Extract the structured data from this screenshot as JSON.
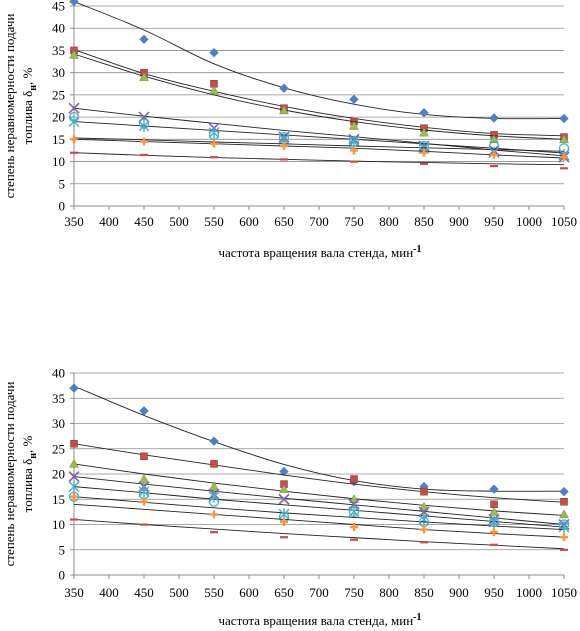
{
  "chart_data": [
    {
      "type": "scatter",
      "xlabel": "частота вращения вала стенда, мин",
      "xlabel_sup": "-1",
      "ylabel_line1": "степень неравномерности подачи",
      "ylabel_line2": "топлива δ",
      "ylabel_sub": "н",
      "ylabel_unit": ", %",
      "x": [
        350,
        450,
        550,
        650,
        750,
        850,
        950,
        1050
      ],
      "xlim": [
        350,
        1050
      ],
      "ylim": [
        0,
        45
      ],
      "yticks": [
        0,
        5,
        10,
        15,
        20,
        25,
        30,
        35,
        40,
        45
      ],
      "grid": true,
      "series": [
        {
          "marker": "diamond",
          "color": "#4F81BD",
          "values": [
            46,
            37.5,
            34.5,
            26.5,
            24,
            21,
            19.8,
            19.7
          ],
          "trend": [
            46,
            39.6,
            32,
            26.6,
            22.9,
            20.6,
            19.7,
            19.7
          ]
        },
        {
          "marker": "square",
          "color": "#C0504D",
          "values": [
            35,
            30,
            27.5,
            22,
            19,
            17.5,
            16,
            15.5
          ],
          "trend": [
            35.2,
            29.8,
            25.8,
            22.4,
            19.7,
            17.7,
            16.3,
            15.8
          ]
        },
        {
          "marker": "triangle",
          "color": "#9BBB59",
          "values": [
            34,
            29,
            26,
            21.5,
            18,
            16.5,
            15,
            15
          ],
          "trend": [
            34.2,
            29.2,
            25,
            21.6,
            19,
            17.1,
            15.8,
            15
          ]
        },
        {
          "marker": "xcross",
          "color": "#8064A2",
          "values": [
            22,
            20,
            17.5,
            15.5,
            15,
            13.5,
            12.5,
            11
          ],
          "trend": [
            22,
            20.2,
            18.6,
            17,
            15.6,
            14.1,
            12.6,
            11.3
          ]
        },
        {
          "marker": "star",
          "color": "#4BACC6",
          "values": [
            19,
            18,
            16.5,
            15,
            14.5,
            13,
            12,
            11.5
          ],
          "trend": [
            19,
            18,
            17,
            16,
            15,
            14,
            13,
            11.9
          ]
        },
        {
          "marker": "circle",
          "color": "#4BACC6",
          "values": [
            20,
            18.5,
            16,
            15.5,
            14.5,
            13.5,
            13.5,
            13
          ],
          "trend": [
            15.3,
            14.9,
            14.4,
            14,
            13.5,
            13.1,
            12.7,
            12.3
          ]
        },
        {
          "marker": "plus",
          "color": "#F79646",
          "values": [
            15,
            14.5,
            14,
            13.5,
            12.5,
            12,
            11.5,
            11
          ],
          "trend": [
            15,
            14.5,
            14,
            13.5,
            13,
            12.3,
            11.5,
            10.8
          ]
        },
        {
          "marker": "dash",
          "color": "#C0504D",
          "values": [
            12,
            11.5,
            11,
            10.5,
            10,
            9.5,
            9,
            8.5
          ],
          "trend": [
            12,
            11.4,
            10.9,
            10.5,
            10.1,
            9.8,
            9.5,
            9.3
          ]
        }
      ]
    },
    {
      "type": "scatter",
      "xlabel": "частота вращения вала стенда, мин",
      "xlabel_sup": "-1",
      "ylabel_line1": "степень неравномерности подачи",
      "ylabel_line2": "топлива δ",
      "ylabel_sub": "н",
      "ylabel_unit": ", %",
      "x": [
        350,
        450,
        550,
        650,
        750,
        850,
        950,
        1050
      ],
      "xlim": [
        350,
        1050
      ],
      "ylim": [
        0,
        40
      ],
      "yticks": [
        0,
        5,
        10,
        15,
        20,
        25,
        30,
        35,
        40
      ],
      "grid": true,
      "series": [
        {
          "marker": "diamond",
          "color": "#4F81BD",
          "values": [
            37,
            32.5,
            26.5,
            20.5,
            18.5,
            17.5,
            17,
            16.5
          ],
          "trend": [
            37.4,
            31.6,
            26.4,
            21.9,
            18.7,
            17,
            16.6,
            16.6
          ]
        },
        {
          "marker": "square",
          "color": "#C0504D",
          "values": [
            26,
            23.5,
            22,
            18,
            19,
            16.5,
            14,
            14.5
          ],
          "trend": [
            26,
            23.8,
            21.8,
            19.8,
            18,
            16.5,
            15.3,
            14.4
          ]
        },
        {
          "marker": "triangle",
          "color": "#9BBB59",
          "values": [
            22,
            19,
            17.5,
            17,
            15,
            13.5,
            12.5,
            12
          ],
          "trend": [
            22,
            20,
            18.2,
            16.6,
            15.1,
            13.8,
            12.7,
            11.8
          ]
        },
        {
          "marker": "xcross",
          "color": "#8064A2",
          "values": [
            19.5,
            17.5,
            16,
            15,
            14,
            12.5,
            11,
            10
          ],
          "trend": [
            19.5,
            18,
            16.6,
            15.2,
            13.9,
            12.6,
            11.3,
            10
          ]
        },
        {
          "marker": "star",
          "color": "#4BACC6",
          "values": [
            17.5,
            16.5,
            15.5,
            12,
            12.5,
            11,
            10.5,
            9.5
          ],
          "trend": [
            17.5,
            16.3,
            15,
            13.9,
            12.8,
            11.7,
            10.6,
            9.5
          ]
        },
        {
          "marker": "circle",
          "color": "#4BACC6",
          "values": [
            15.5,
            16,
            14.5,
            11.5,
            12.5,
            10.5,
            10.5,
            10
          ],
          "trend": [
            15.5,
            14.4,
            13.3,
            12.3,
            11.4,
            10.5,
            9.7,
            9
          ]
        },
        {
          "marker": "plus",
          "color": "#F79646",
          "values": [
            15.5,
            14.5,
            12,
            10.5,
            9.5,
            9,
            8.5,
            7.5
          ],
          "trend": [
            14,
            13,
            12,
            11,
            10,
            9,
            8.2,
            7.5
          ]
        },
        {
          "marker": "dash",
          "color": "#C0504D",
          "values": [
            11,
            10,
            8.5,
            7.5,
            7,
            6.5,
            6,
            5
          ],
          "trend": [
            11,
            10,
            9.1,
            8.2,
            7.4,
            6.6,
            5.9,
            5.2
          ]
        }
      ]
    }
  ]
}
